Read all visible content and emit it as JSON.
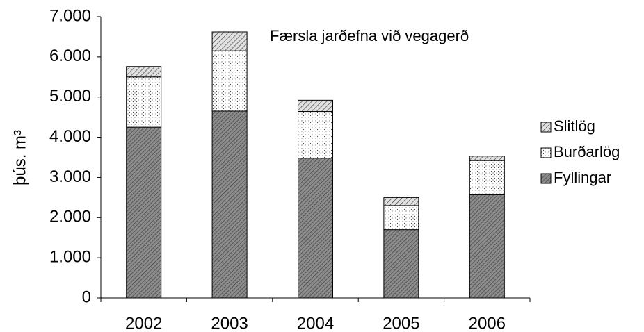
{
  "chart_data": {
    "type": "stacked_bar",
    "title": "Færsla jarðefna við vegagerð",
    "y_label": "þús. m³",
    "categories": [
      "2002",
      "2003",
      "2004",
      "2005",
      "2006"
    ],
    "series": [
      {
        "name": "Fyllingar",
        "color": "#8c8c8c",
        "values": [
          4250,
          4650,
          3480,
          1700,
          2570
        ]
      },
      {
        "name": "Burðarlög",
        "color": "#ffffff",
        "values": [
          1250,
          1500,
          1160,
          600,
          850
        ]
      },
      {
        "name": "Slitlög",
        "color": "#e0e0e0",
        "values": [
          260,
          470,
          280,
          200,
          110
        ]
      }
    ],
    "ylim": [
      0,
      7000
    ],
    "yticks": [
      0,
      {
        "value": 1000,
        "label": "1.000"
      },
      {
        "value": 2000,
        "label": "2.000"
      },
      {
        "value": 3000,
        "label": "3.000"
      },
      {
        "value": 4000,
        "label": "4.000"
      },
      {
        "value": 5000,
        "label": "5.000"
      },
      {
        "value": 6000,
        "label": "6.000"
      },
      {
        "value": 7000,
        "label": "7.000"
      }
    ],
    "legend": "right",
    "grid": false
  }
}
